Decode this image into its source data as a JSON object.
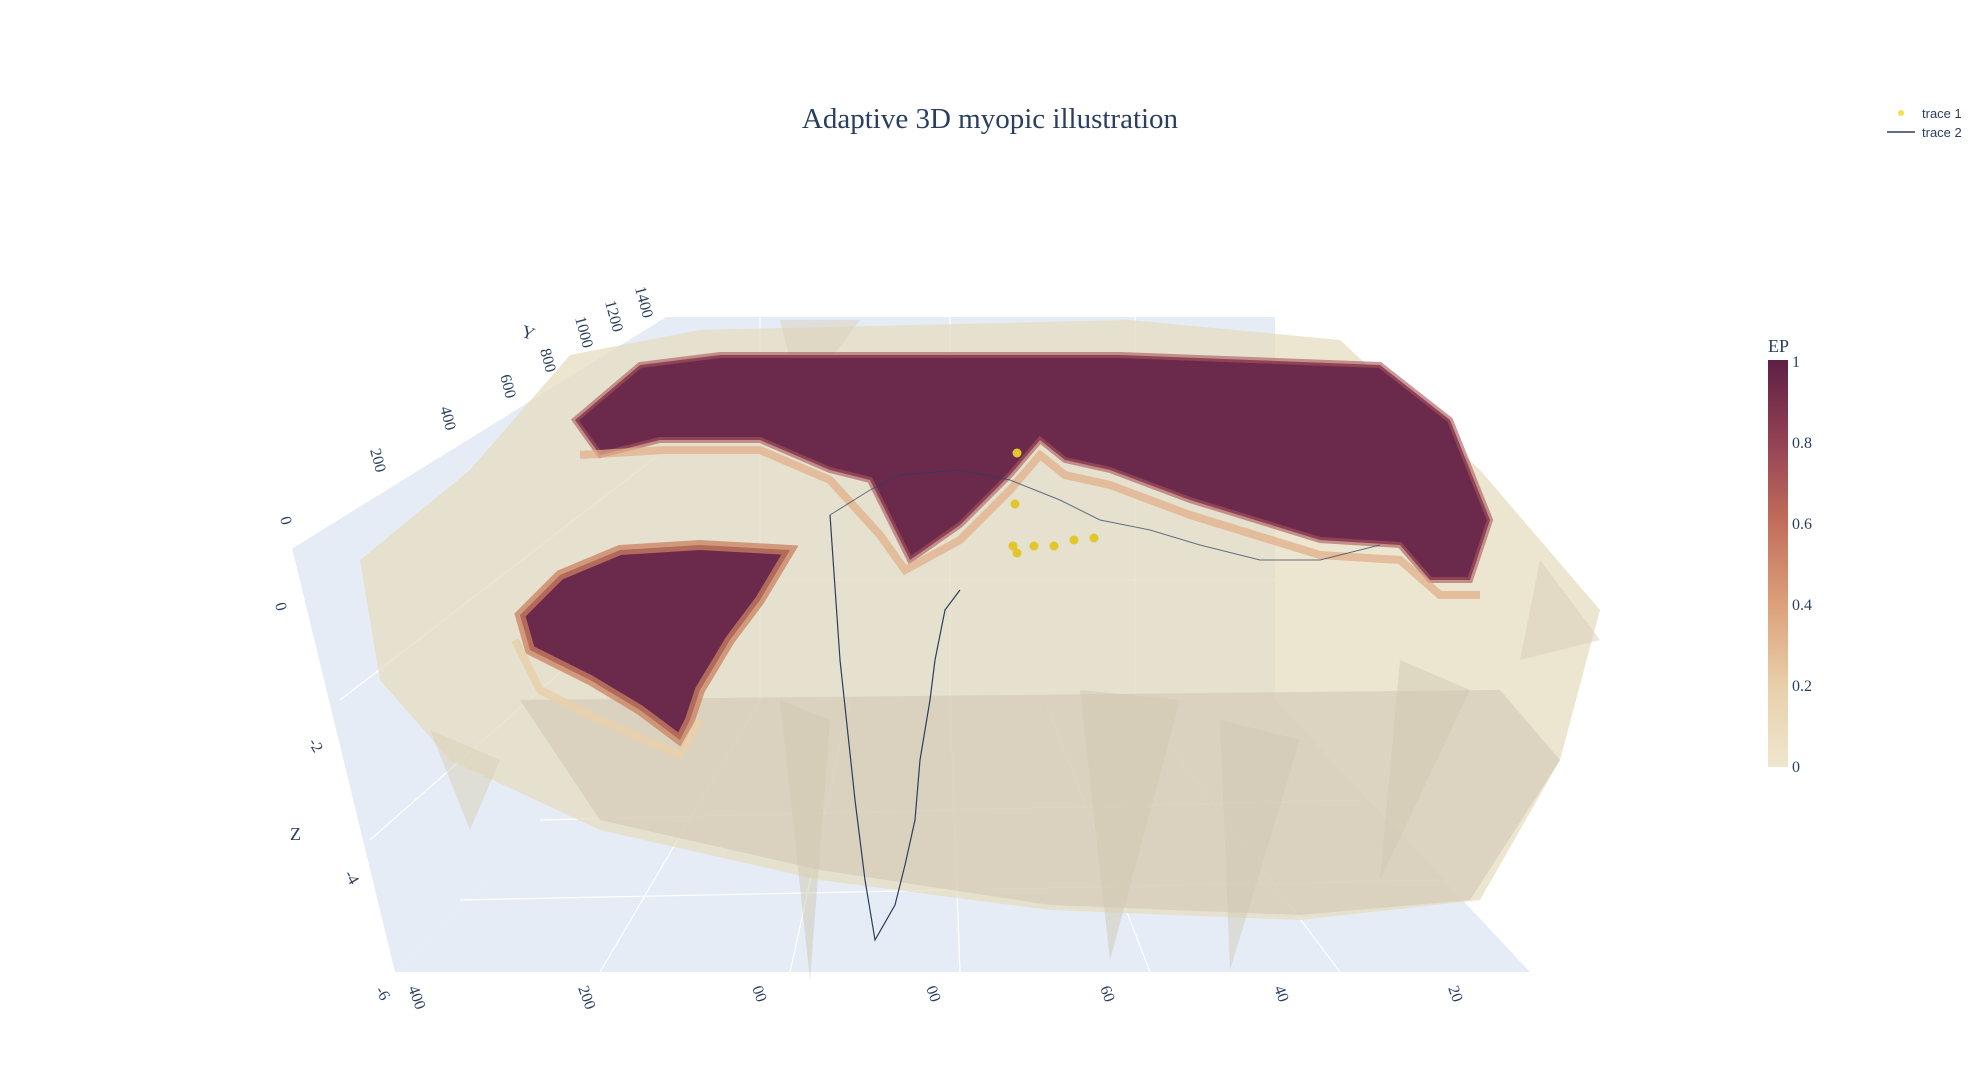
{
  "chart_data": {
    "type": "surface3d",
    "title": "Adaptive 3D myopic illustration",
    "axes": {
      "x": {
        "label": "",
        "ticks": [
          "400",
          "200",
          "00",
          "00",
          "60",
          "40",
          "20"
        ]
      },
      "y": {
        "label": "Y",
        "ticks": [
          "0",
          "200",
          "400",
          "600",
          "800",
          "1000",
          "1200",
          "1400"
        ]
      },
      "z": {
        "label": "Z",
        "ticks": [
          "0",
          "-2",
          "-4",
          "-6"
        ]
      }
    },
    "colorbar": {
      "title": "EP",
      "range": [
        0,
        1
      ],
      "ticks": [
        "0",
        "0.2",
        "0.4",
        "0.6",
        "0.8",
        "1"
      ],
      "colors": [
        "#efe6cf",
        "#e8cfa9",
        "#dca079",
        "#c26e5b",
        "#934255",
        "#5e1f45"
      ]
    },
    "legend": {
      "placement": "top-right",
      "items": [
        {
          "name": "trace 1",
          "symbol": "marker",
          "color": "#f2e04d"
        },
        {
          "name": "trace 2",
          "symbol": "line",
          "color": "#2a3f5f"
        }
      ]
    },
    "series": [
      {
        "name": "trace 1",
        "kind": "scatter3d-markers",
        "color": "#e3c62c"
      },
      {
        "name": "trace 2",
        "kind": "scatter3d-line",
        "color": "#2a3f5f"
      }
    ],
    "scene_background": "#e5ecf6",
    "grid": true
  }
}
